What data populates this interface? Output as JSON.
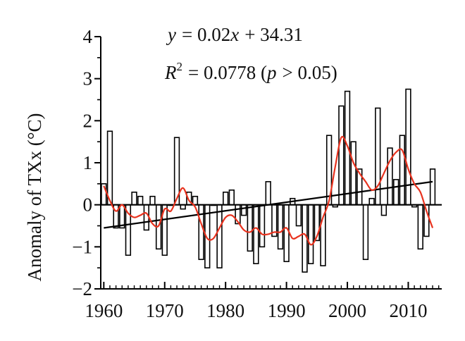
{
  "chart_data": {
    "type": "bar",
    "xlabel": "",
    "ylabel": "Anomaly of TXx (°C)",
    "xlim": [
      1959.5,
      2015.5
    ],
    "ylim": [
      -2,
      4
    ],
    "x_ticks": [
      1960,
      1970,
      1980,
      1990,
      2000,
      2010
    ],
    "y_ticks": [
      -2,
      -1,
      0,
      1,
      2,
      3,
      4
    ],
    "grid": false,
    "equation": {
      "lhs": "y",
      "eq": "= 0.02",
      "var": "x",
      "rest": "+ 34.31",
      "r2_label": "R",
      "r2_sup": "2",
      "r2_value": "= 0.0778 (",
      "p_label": "p",
      "p_rest": "> 0.05)"
    },
    "years": [
      1960,
      1961,
      1962,
      1963,
      1964,
      1965,
      1966,
      1967,
      1968,
      1969,
      1970,
      1971,
      1972,
      1973,
      1974,
      1975,
      1976,
      1977,
      1978,
      1979,
      1980,
      1981,
      1982,
      1983,
      1984,
      1985,
      1986,
      1987,
      1988,
      1989,
      1990,
      1991,
      1992,
      1993,
      1994,
      1995,
      1996,
      1997,
      1998,
      1999,
      2000,
      2001,
      2002,
      2003,
      2004,
      2005,
      2006,
      2007,
      2008,
      2009,
      2010,
      2011,
      2012,
      2013,
      2014
    ],
    "series": [
      {
        "role": "anomaly-bars",
        "color": "#000000",
        "values": [
          0.5,
          1.75,
          -0.55,
          -0.55,
          -1.2,
          0.3,
          0.2,
          -0.6,
          0.2,
          -1.05,
          -1.2,
          0.0,
          1.6,
          -0.1,
          0.3,
          0.2,
          -1.3,
          -1.5,
          0.0,
          -1.5,
          0.3,
          0.35,
          -0.45,
          -0.25,
          -1.1,
          -1.4,
          -1.0,
          0.55,
          -0.75,
          -1.05,
          -1.35,
          0.15,
          -0.5,
          -1.6,
          -1.4,
          -0.85,
          -1.45,
          1.65,
          -0.05,
          2.35,
          2.7,
          1.5,
          0.85,
          -1.3,
          0.15,
          2.3,
          -0.25,
          1.35,
          0.6,
          1.65,
          2.75,
          -0.05,
          -1.05,
          -0.75,
          0.85
        ]
      },
      {
        "role": "smoothed",
        "color": "#e8321e",
        "values": [
          0.45,
          0.1,
          -0.15,
          0.0,
          -0.2,
          -0.3,
          -0.25,
          -0.2,
          -0.45,
          -0.5,
          -0.1,
          -0.15,
          0.15,
          0.4,
          0.1,
          -0.05,
          -0.45,
          -0.8,
          -0.8,
          -0.55,
          -0.3,
          -0.25,
          -0.4,
          -0.6,
          -0.65,
          -0.55,
          -0.7,
          -0.7,
          -0.65,
          -0.65,
          -0.55,
          -0.8,
          -0.75,
          -0.7,
          -0.95,
          -0.75,
          -0.3,
          0.1,
          0.9,
          1.6,
          1.4,
          1.0,
          0.75,
          0.55,
          0.35,
          0.45,
          0.75,
          1.05,
          1.25,
          1.3,
          0.85,
          0.5,
          0.3,
          -0.15,
          -0.55
        ]
      },
      {
        "role": "linear-trend",
        "color": "#000000",
        "x": [
          1960,
          2014
        ],
        "values": [
          -0.55,
          0.55
        ]
      }
    ]
  }
}
